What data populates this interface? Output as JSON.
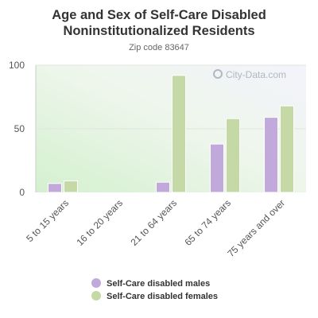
{
  "chart_data": {
    "type": "bar",
    "title": "Age and Sex of Self-Care Disabled Noninstitutionalized Residents",
    "title_line1": "Age and Sex of Self-Care Disabled",
    "title_line2": "Noninstitutionalized Residents",
    "subtitle": "Zip code 83647",
    "categories": [
      "5 to 15 years",
      "16 to 20 years",
      "21 to 64 years",
      "65 to 74 years",
      "75 years and over"
    ],
    "series": [
      {
        "name": "Self-Care disabled males",
        "color": "#c2a9db",
        "values": [
          7,
          0,
          8,
          38,
          59
        ]
      },
      {
        "name": "Self-Care disabled females",
        "color": "#c5d9a6",
        "values": [
          9,
          0,
          92,
          58,
          68
        ]
      }
    ],
    "yticks": [
      0,
      50,
      100
    ],
    "ylim": [
      0,
      100
    ],
    "grid": true,
    "legend_position": "bottom",
    "watermark": "City-Data.com"
  }
}
